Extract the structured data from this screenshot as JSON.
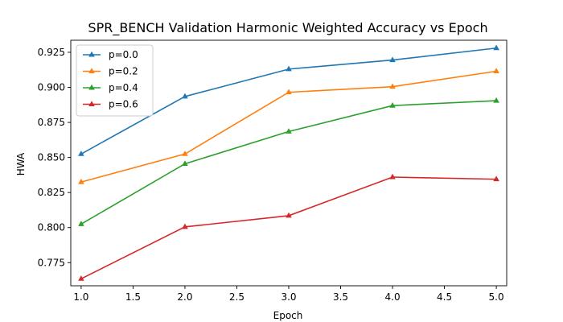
{
  "chart_data": {
    "type": "line",
    "title": "SPR_BENCH Validation Harmonic Weighted Accuracy vs Epoch",
    "xlabel": "Epoch",
    "ylabel": "HWA",
    "x": [
      1.0,
      2.0,
      3.0,
      4.0,
      5.0
    ],
    "xlim": [
      0.9,
      5.1
    ],
    "ylim": [
      0.7585,
      0.9336
    ],
    "xticks": [
      1.0,
      1.5,
      2.0,
      2.5,
      3.0,
      3.5,
      4.0,
      4.5,
      5.0
    ],
    "xtick_labels": [
      "1.0",
      "1.5",
      "2.0",
      "2.5",
      "3.0",
      "3.5",
      "4.0",
      "4.5",
      "5.0"
    ],
    "yticks": [
      0.775,
      0.8,
      0.825,
      0.85,
      0.875,
      0.9,
      0.925
    ],
    "ytick_labels": [
      "0.775",
      "0.800",
      "0.825",
      "0.850",
      "0.875",
      "0.900",
      "0.925"
    ],
    "grid": false,
    "legend_position": "top-left",
    "marker": "triangle-up",
    "series": [
      {
        "name": "p=0.0",
        "color": "#1f77b4",
        "values": [
          0.8525,
          0.8935,
          0.913,
          0.9195,
          0.928
        ]
      },
      {
        "name": "p=0.2",
        "color": "#ff7f0e",
        "values": [
          0.8325,
          0.8525,
          0.8965,
          0.9005,
          0.9115
        ]
      },
      {
        "name": "p=0.4",
        "color": "#2ca02c",
        "values": [
          0.8025,
          0.8455,
          0.8685,
          0.887,
          0.8905
        ]
      },
      {
        "name": "p=0.6",
        "color": "#d62728",
        "values": [
          0.7635,
          0.8005,
          0.8085,
          0.836,
          0.8345
        ]
      }
    ]
  }
}
